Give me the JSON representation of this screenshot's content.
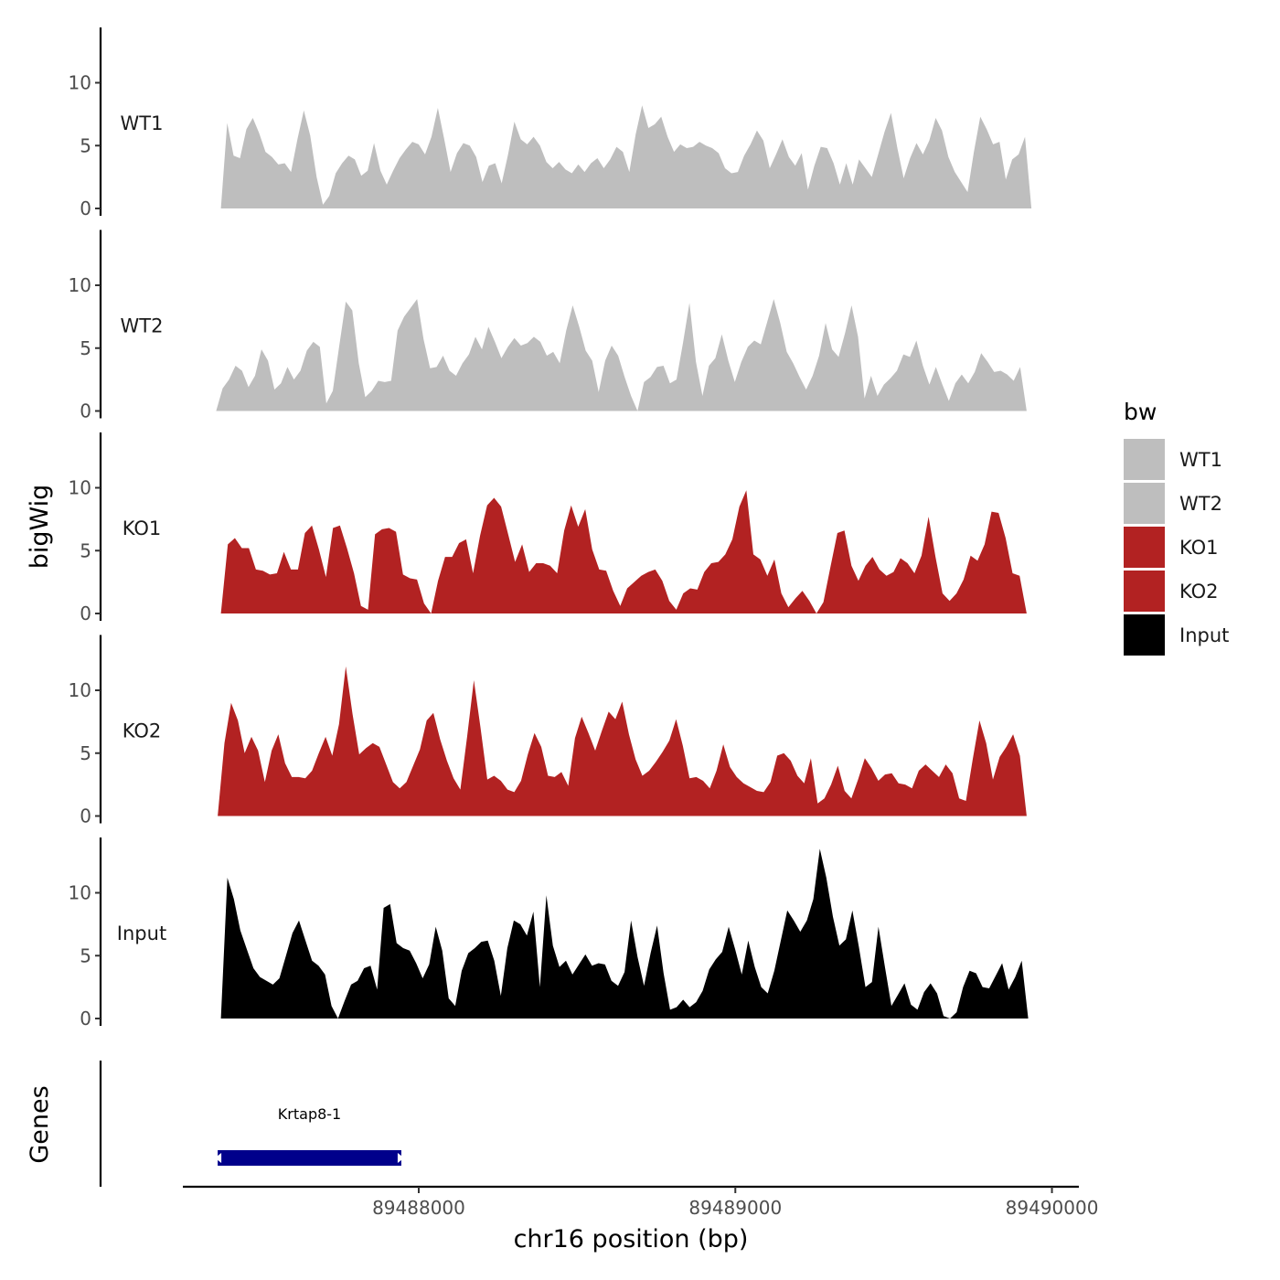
{
  "chart_data": {
    "type": "area",
    "title": "",
    "xlabel": "chr16 position (bp)",
    "ylabel": "bigWig",
    "genes_label": "Genes",
    "chromosome": "chr16",
    "x_ticks": [
      89488000,
      89489000,
      89490000
    ],
    "x_tick_labels": [
      "89488000",
      "89489000",
      "89490000"
    ],
    "xlim": [
      89487255,
      89490085
    ],
    "ylim": [
      0,
      14
    ],
    "y_ticks": [
      0,
      5,
      10
    ],
    "y_tick_labels": [
      "0",
      "5",
      "10"
    ],
    "legend": {
      "title": "bw",
      "position": "right",
      "entries": [
        {
          "label": "WT1",
          "color": "#bebebe"
        },
        {
          "label": "WT2",
          "color": "#bebebe"
        },
        {
          "label": "KO1",
          "color": "#b22222"
        },
        {
          "label": "KO2",
          "color": "#b22222"
        },
        {
          "label": "Input",
          "color": "#000000"
        }
      ]
    },
    "series": [
      {
        "name": "WT1",
        "color": "#bebebe",
        "x_start": 89487375,
        "x_end": 89489935,
        "values": [
          0,
          6.8,
          4.2,
          4.0,
          6.3,
          7.2,
          6.0,
          4.5,
          4.1,
          3.5,
          3.6,
          2.9,
          5.5,
          7.8,
          5.8,
          2.5,
          0.3,
          1.0,
          2.8,
          3.6,
          4.2,
          3.9,
          2.6,
          3.0,
          5.2,
          3.0,
          1.9,
          3.0,
          4.0,
          4.7,
          5.3,
          5.1,
          4.3,
          5.7,
          8.0,
          5.5,
          2.9,
          4.4,
          5.2,
          5.0,
          4.1,
          2.1,
          3.4,
          3.6,
          2.0,
          4.3,
          6.9,
          5.5,
          5.1,
          5.7,
          5.0,
          3.7,
          3.2,
          3.7,
          3.1,
          2.8,
          3.5,
          2.9,
          3.6,
          4.0,
          3.2,
          3.9,
          4.9,
          4.5,
          2.9,
          5.9,
          8.2,
          6.4,
          6.7,
          7.3,
          5.7,
          4.5,
          5.1,
          4.8,
          4.9,
          5.3,
          5.0,
          4.8,
          4.4,
          3.2,
          2.8,
          2.9,
          4.2,
          5.1,
          6.2,
          5.4,
          3.2,
          4.3,
          5.5,
          4.1,
          3.4,
          4.4,
          1.5,
          3.4,
          4.9,
          4.8,
          3.6,
          1.9,
          3.6,
          1.9,
          3.9,
          3.2,
          2.5,
          4.3,
          6.1,
          7.6,
          4.8,
          2.4,
          4.0,
          5.2,
          4.3,
          5.4,
          7.2,
          6.2,
          4.1,
          2.9,
          2.1,
          1.3,
          4.5,
          7.3,
          6.3,
          5.1,
          5.3,
          2.3,
          3.9,
          4.3,
          5.7,
          0
        ]
      },
      {
        "name": "WT2",
        "color": "#bebebe",
        "x_start": 89487360,
        "x_end": 89489920,
        "values": [
          0,
          1.8,
          2.5,
          3.6,
          3.2,
          1.9,
          2.8,
          4.9,
          4.0,
          1.7,
          2.2,
          3.5,
          2.5,
          3.2,
          4.8,
          5.5,
          5.1,
          0.6,
          1.6,
          5.2,
          8.7,
          8.0,
          3.8,
          1.1,
          1.6,
          2.4,
          2.3,
          2.4,
          6.4,
          7.5,
          8.2,
          8.9,
          5.7,
          3.4,
          3.5,
          4.4,
          3.2,
          2.8,
          3.8,
          4.5,
          5.9,
          4.9,
          6.7,
          5.5,
          4.2,
          5.1,
          5.8,
          5.2,
          5.4,
          5.9,
          5.5,
          4.4,
          4.7,
          3.8,
          6.4,
          8.4,
          6.7,
          4.8,
          4.0,
          1.5,
          4.0,
          5.2,
          4.4,
          2.7,
          1.2,
          0,
          2.3,
          2.7,
          3.5,
          3.6,
          2.2,
          2.5,
          5.4,
          8.6,
          3.9,
          1.2,
          3.6,
          4.2,
          6.1,
          4.0,
          2.3,
          3.9,
          5.1,
          5.6,
          5.3,
          7.1,
          8.9,
          7.0,
          4.7,
          3.8,
          2.7,
          1.7,
          2.8,
          4.4,
          7.0,
          4.9,
          4.3,
          6.2,
          8.4,
          5.9,
          1.0,
          2.8,
          1.2,
          2.1,
          2.6,
          3.2,
          4.5,
          4.3,
          5.6,
          3.6,
          2.1,
          3.5,
          2.1,
          0.8,
          2.2,
          2.9,
          2.2,
          3.1,
          4.6,
          3.9,
          3.1,
          3.2,
          2.9,
          2.4,
          3.5,
          0
        ]
      },
      {
        "name": "KO1",
        "color": "#b22222",
        "x_start": 89487375,
        "x_end": 89489920,
        "values": [
          0,
          5.5,
          6.0,
          5.2,
          5.2,
          3.5,
          3.4,
          3.1,
          3.2,
          4.9,
          3.5,
          3.5,
          6.4,
          7.0,
          5.1,
          2.9,
          6.8,
          7.0,
          5.2,
          3.2,
          0.6,
          0.3,
          6.3,
          6.7,
          6.8,
          6.5,
          3.1,
          2.8,
          2.7,
          0.8,
          0,
          2.6,
          4.5,
          4.5,
          5.6,
          5.9,
          3.2,
          6.2,
          8.6,
          9.2,
          8.5,
          6.3,
          4.1,
          5.5,
          3.3,
          4.0,
          4.0,
          3.8,
          3.2,
          6.6,
          8.6,
          6.9,
          8.3,
          5.1,
          3.5,
          3.4,
          1.8,
          0.6,
          2.0,
          2.5,
          3.0,
          3.3,
          3.5,
          2.6,
          1.0,
          0.3,
          1.6,
          2.0,
          1.9,
          3.3,
          4.0,
          4.1,
          4.7,
          5.9,
          8.5,
          9.8,
          4.7,
          4.3,
          3.0,
          4.3,
          1.6,
          0.5,
          1.2,
          1.8,
          1.0,
          0,
          0.9,
          3.7,
          6.4,
          6.6,
          3.8,
          2.6,
          3.8,
          4.5,
          3.5,
          3.0,
          3.3,
          4.4,
          4.0,
          3.2,
          4.6,
          7.7,
          4.5,
          1.6,
          1.0,
          1.6,
          2.7,
          4.6,
          4.2,
          5.5,
          8.1,
          8.0,
          6.0,
          3.2,
          3.0,
          0
        ]
      },
      {
        "name": "KO2",
        "color": "#b22222",
        "x_start": 89487365,
        "x_end": 89489920,
        "values": [
          0,
          5.8,
          9.0,
          7.6,
          5.0,
          6.3,
          5.2,
          2.7,
          5.2,
          6.5,
          4.2,
          3.1,
          3.1,
          3.0,
          3.6,
          5.0,
          6.3,
          4.8,
          7.3,
          11.9,
          8.1,
          4.9,
          5.4,
          5.8,
          5.5,
          4.1,
          2.7,
          2.2,
          2.7,
          4.0,
          5.3,
          7.6,
          8.2,
          6.1,
          4.4,
          3.0,
          2.1,
          6.3,
          10.8,
          7.0,
          2.9,
          3.2,
          2.8,
          2.1,
          1.9,
          2.8,
          4.9,
          6.6,
          5.5,
          3.2,
          3.1,
          3.5,
          2.4,
          6.2,
          7.9,
          6.6,
          5.2,
          6.8,
          8.3,
          7.7,
          9.1,
          6.5,
          4.5,
          3.2,
          3.6,
          4.3,
          5.1,
          6.0,
          7.7,
          5.6,
          3.0,
          3.1,
          2.8,
          2.2,
          3.6,
          5.7,
          3.9,
          3.1,
          2.6,
          2.3,
          2.0,
          1.9,
          2.7,
          4.8,
          5.0,
          4.4,
          3.2,
          2.6,
          4.6,
          1.0,
          1.4,
          2.5,
          4.0,
          2.0,
          1.4,
          2.9,
          4.6,
          3.8,
          2.8,
          3.3,
          3.4,
          2.6,
          2.5,
          2.2,
          3.6,
          4.1,
          3.6,
          3.1,
          4.1,
          3.4,
          1.4,
          1.2,
          4.5,
          7.6,
          5.8,
          2.9,
          4.7,
          5.5,
          6.5,
          4.8,
          0
        ]
      },
      {
        "name": "Input",
        "color": "#000000",
        "x_start": 89487375,
        "x_end": 89489925,
        "values": [
          0,
          11.2,
          9.5,
          7.0,
          5.5,
          4.0,
          3.3,
          3.0,
          2.7,
          3.2,
          5.0,
          6.8,
          7.8,
          6.2,
          4.6,
          4.2,
          3.5,
          1.0,
          0,
          1.4,
          2.7,
          3.0,
          4.0,
          4.2,
          2.3,
          8.8,
          9.1,
          6.0,
          5.6,
          5.4,
          4.4,
          3.2,
          4.3,
          7.3,
          5.4,
          1.6,
          1.0,
          3.8,
          5.2,
          5.6,
          6.1,
          6.2,
          4.6,
          1.8,
          5.6,
          7.8,
          7.5,
          6.6,
          8.5,
          2.5,
          9.8,
          5.8,
          4.1,
          4.6,
          3.5,
          4.3,
          5.1,
          4.2,
          4.4,
          4.3,
          3.0,
          2.6,
          3.7,
          7.8,
          4.9,
          2.6,
          5.2,
          7.4,
          3.6,
          0.7,
          0.9,
          1.5,
          0.9,
          1.3,
          2.2,
          3.9,
          4.7,
          5.3,
          7.3,
          5.5,
          3.5,
          6.2,
          4.1,
          2.5,
          2.0,
          3.8,
          6.2,
          8.6,
          7.8,
          6.9,
          7.8,
          9.5,
          13.5,
          11.2,
          8.1,
          5.8,
          6.3,
          8.6,
          5.7,
          2.5,
          2.9,
          7.3,
          4.1,
          1.0,
          1.9,
          2.8,
          1.1,
          0.7,
          2.1,
          2.8,
          2.0,
          0.2,
          0,
          0.5,
          2.5,
          3.8,
          3.6,
          2.5,
          2.4,
          3.4,
          4.4,
          2.3,
          3.3,
          4.6,
          0
        ]
      }
    ],
    "genes": [
      {
        "name": "Krtap8-1",
        "start": 89487365,
        "end": 89487945,
        "color": "#00008b"
      }
    ]
  }
}
